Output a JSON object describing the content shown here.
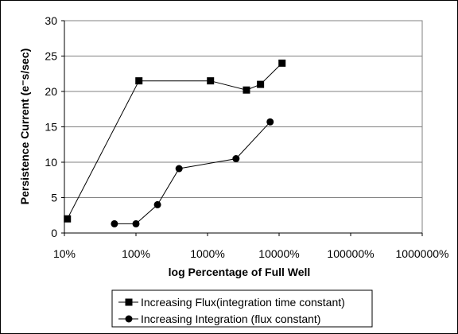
{
  "chart_data": {
    "type": "line",
    "xlabel": "log  Percentage of  Full Well",
    "ylabel": "Persistence Current (e⁻s/sec)",
    "xscale": "log",
    "xlim": [
      10,
      1000000
    ],
    "ylim": [
      0,
      30
    ],
    "x_ticks": [
      10,
      100,
      1000,
      10000,
      100000,
      1000000
    ],
    "x_tick_labels": [
      "10%",
      "100%",
      "1000%",
      "10000%",
      "100000%",
      "1000000%"
    ],
    "y_ticks": [
      0,
      5,
      10,
      15,
      20,
      25,
      30
    ],
    "y_tick_labels": [
      "0",
      "5",
      "10",
      "15",
      "20",
      "25",
      "30"
    ],
    "grid": "horizontal major gridlines",
    "legend_position": "bottom-center",
    "series": [
      {
        "name": "Increasing Flux(integration time constant)",
        "marker": "square",
        "color": "#000000",
        "x": [
          11,
          110,
          1100,
          3500,
          5500,
          11000
        ],
        "y": [
          2,
          21.5,
          21.5,
          20.2,
          21.0,
          24.0
        ]
      },
      {
        "name": "Increasing Integration (flux constant)",
        "marker": "circle",
        "color": "#000000",
        "x": [
          50,
          100,
          200,
          400,
          2500,
          7500
        ],
        "y": [
          1.3,
          1.3,
          4.0,
          9.1,
          10.5,
          15.7
        ]
      }
    ]
  }
}
